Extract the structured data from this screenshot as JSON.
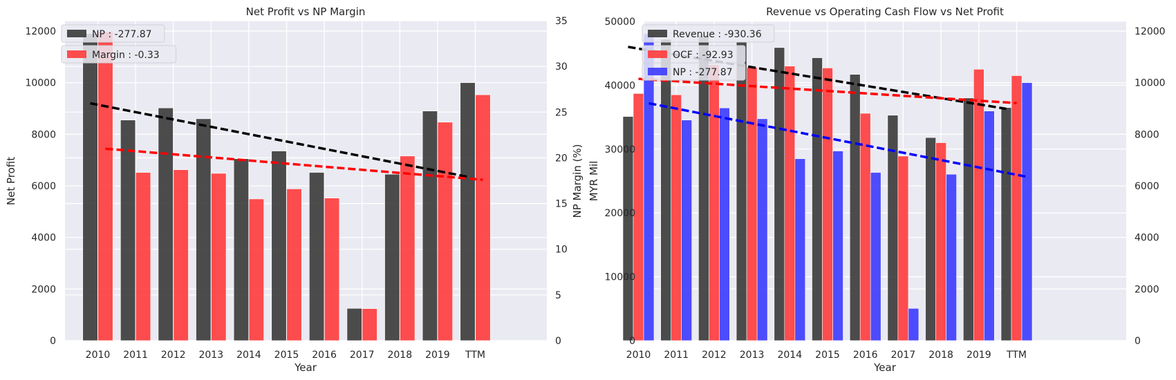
{
  "chart_data": [
    {
      "type": "bar",
      "title": "Net Profit vs NP Margin",
      "xlabel": "Year",
      "ylabel": "Net Profit",
      "ylabel_right": "NP Margin (%)",
      "categories": [
        "2010",
        "2011",
        "2012",
        "2013",
        "2014",
        "2015",
        "2016",
        "2017",
        "2018",
        "2019",
        "TTM"
      ],
      "ylim": [
        0,
        12400
      ],
      "ylim_right": [
        0,
        35
      ],
      "yticks": [
        "0",
        "2000",
        "4000",
        "6000",
        "8000",
        "10000",
        "12000"
      ],
      "yticks_right": [
        "0",
        "5",
        "10",
        "15",
        "20",
        "25",
        "30",
        "35"
      ],
      "grid": true,
      "legend_position": "top-left",
      "series": [
        {
          "name": "NP : -277.87",
          "axis": "left",
          "color": "#3a3a3a",
          "values": [
            11900,
            8550,
            9020,
            8600,
            7050,
            7350,
            6520,
            1250,
            6450,
            8900,
            10000
          ],
          "trend": [
            9200,
            6350
          ]
        },
        {
          "name": "Margin : -0.33",
          "axis": "right",
          "color": "#ff3b3b",
          "values": [
            33.8,
            18.4,
            18.7,
            18.3,
            15.5,
            16.6,
            15.6,
            3.5,
            20.2,
            23.9,
            26.9
          ],
          "trend": [
            21.0,
            17.6
          ]
        }
      ]
    },
    {
      "type": "bar",
      "title": "Revenue vs Operating Cash Flow vs Net Profit",
      "xlabel": "Year",
      "ylabel": "MYR Mil",
      "categories": [
        "2010",
        "2011",
        "2012",
        "2013",
        "2014",
        "2015",
        "2016",
        "2017",
        "2018",
        "2019",
        "TTM"
      ],
      "ylim": [
        0,
        50100
      ],
      "ylim_right": [
        0,
        12400
      ],
      "yticks": [
        "0",
        "10000",
        "20000",
        "30000",
        "40000",
        "50000"
      ],
      "yticks_right": [
        "0",
        "2000",
        "4000",
        "6000",
        "8000",
        "10000",
        "12000"
      ],
      "grid": true,
      "legend_position": "top-left",
      "series": [
        {
          "name": "Revenue : -930.36",
          "axis": "left",
          "color": "#3a3a3a",
          "values": [
            35100,
            47200,
            47800,
            46800,
            45900,
            44300,
            41700,
            35300,
            31800,
            38000,
            36500
          ],
          "trend": [
            46000,
            36300
          ]
        },
        {
          "name": "OCF : -92.93",
          "axis": "left",
          "color": "#ff3b3b",
          "values": [
            38700,
            38500,
            43200,
            42800,
            43000,
            42700,
            35600,
            28900,
            31000,
            42500,
            41500
          ],
          "trend": [
            41000,
            37200
          ]
        },
        {
          "name": "NP : -277.87",
          "axis": "right",
          "color": "#3b3bff",
          "values": [
            11900,
            8550,
            9020,
            8600,
            7050,
            7350,
            6520,
            1250,
            6450,
            8900,
            10000
          ],
          "trend": [
            9200,
            6350
          ]
        }
      ]
    }
  ]
}
